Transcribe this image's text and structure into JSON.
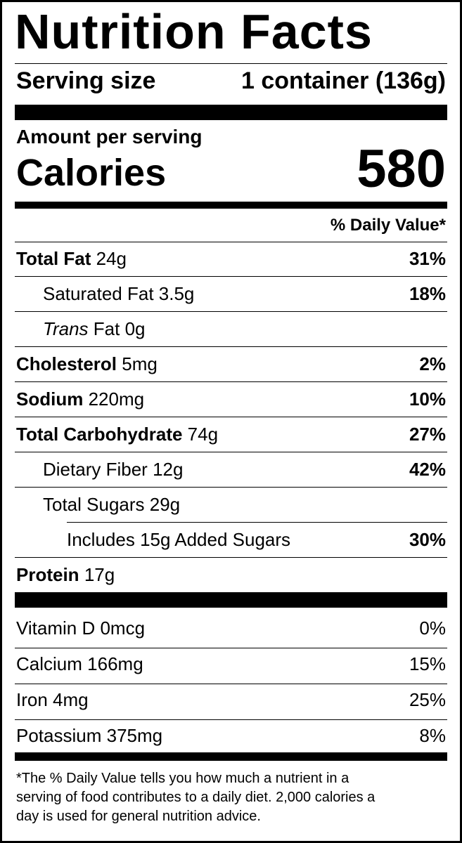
{
  "header": {
    "title": "Nutrition Facts",
    "serving_label": "Serving size",
    "serving_value": "1 container (136g)"
  },
  "calories": {
    "amount_label": "Amount per serving",
    "label": "Calories",
    "value": 580
  },
  "dv_header": "% Daily Value*",
  "nutrients": [
    {
      "label": "Total Fat",
      "amount": "24g",
      "dv": "31%"
    },
    {
      "label": "Saturated Fat",
      "amount": "3.5g",
      "dv": "18%"
    },
    {
      "label": "Trans",
      "label_rest": "Fat",
      "amount": "0g"
    },
    {
      "label": "Cholesterol",
      "amount": "5mg",
      "dv": "2%"
    },
    {
      "label": "Sodium",
      "amount": "220mg",
      "dv": "10%"
    },
    {
      "label": "Total Carbohydrate",
      "amount": "74g",
      "dv": "27%"
    },
    {
      "label": "Dietary Fiber",
      "amount": "12g",
      "dv": "42%"
    },
    {
      "label": "Total Sugars",
      "amount": "29g"
    },
    {
      "label": "Includes 15g Added Sugars",
      "dv": "30%"
    },
    {
      "label": "Protein",
      "amount": "17g"
    }
  ],
  "vitamins": [
    {
      "label": "Vitamin D",
      "amount": "0mcg",
      "dv": "0%"
    },
    {
      "label": "Calcium",
      "amount": "166mg",
      "dv": "15%"
    },
    {
      "label": "Iron",
      "amount": "4mg",
      "dv": "25%"
    },
    {
      "label": "Potassium",
      "amount": "375mg",
      "dv": "8%"
    }
  ],
  "footnote": [
    "*The % Daily Value tells you how much a nutrient in a",
    "serving of food contributes to a daily diet. 2,000 calories a",
    "day is used for general nutrition advice."
  ]
}
